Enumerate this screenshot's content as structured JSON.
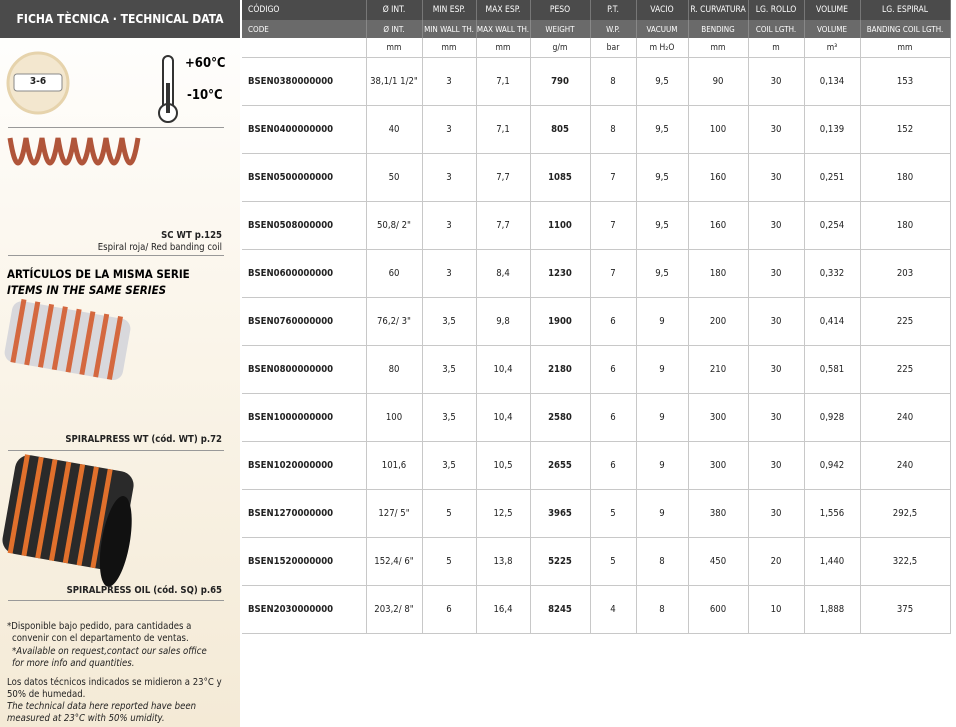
{
  "sidebar": {
    "title": "FICHA TÈCNICA · TECHNICAL DATA",
    "badge": "3-6",
    "temp_max": "+60°C",
    "temp_min": "-10°C",
    "coil_ref": "SC WT p.125",
    "coil_desc": "Espiral roja/ Red banding coil",
    "series_title": "ARTÍCULOS DE LA MISMA SERIE",
    "series_subtitle": "ITEMS IN THE SAME SERIES",
    "item1": "SPIRALPRESS WT (cód. WT) p.72",
    "item2": "SPIRALPRESS OIL (cód. SQ) p.65",
    "notes": [
      "*Disponible bajo pedido, para cantidades a",
      "convenir con el departamento de ventas.",
      "*Available on request,contact our sales office",
      "for more info and quantities.",
      "Los datos técnicos indicados se midieron a 23°C y",
      "50% de humedad.",
      "The technical data here reported have been",
      "measured at 23°C with 50% umidity."
    ]
  },
  "table": {
    "header_es": [
      "CÓDIGO",
      "Ø INT.",
      "MIN ESP.",
      "MAX ESP.",
      "PESO",
      "P.T.",
      "VACIO",
      "R. CURVATURA",
      "LG. ROLLO",
      "VOLUME",
      "LG. ESPIRAL"
    ],
    "header_en": [
      "CODE",
      "Ø INT.",
      "MIN WALL TH.",
      "MAX WALL TH.",
      "WEIGHT",
      "W.P.",
      "VACUUM",
      "BENDING",
      "COIL LGTH.",
      "VOLUME",
      "BANDING COIL LGTH."
    ],
    "units": [
      "mm",
      "mm",
      "mm",
      "g/m",
      "bar",
      "m H₂O",
      "mm",
      "m",
      "m³",
      "mm"
    ],
    "rows": [
      [
        "BSEN0380000000",
        "38,1/1 1/2\"",
        "3",
        "7,1",
        "790",
        "8",
        "9,5",
        "90",
        "30",
        "0,134",
        "153"
      ],
      [
        "BSEN0400000000",
        "40",
        "3",
        "7,1",
        "805",
        "8",
        "9,5",
        "100",
        "30",
        "0,139",
        "152"
      ],
      [
        "BSEN0500000000",
        "50",
        "3",
        "7,7",
        "1085",
        "7",
        "9,5",
        "160",
        "30",
        "0,251",
        "180"
      ],
      [
        "BSEN0508000000",
        "50,8/ 2\"",
        "3",
        "7,7",
        "1100",
        "7",
        "9,5",
        "160",
        "30",
        "0,254",
        "180"
      ],
      [
        "BSEN0600000000",
        "60",
        "3",
        "8,4",
        "1230",
        "7",
        "9,5",
        "180",
        "30",
        "0,332",
        "203"
      ],
      [
        "BSEN0760000000",
        "76,2/ 3\"",
        "3,5",
        "9,8",
        "1900",
        "6",
        "9",
        "200",
        "30",
        "0,414",
        "225"
      ],
      [
        "BSEN0800000000",
        "80",
        "3,5",
        "10,4",
        "2180",
        "6",
        "9",
        "210",
        "30",
        "0,581",
        "225"
      ],
      [
        "BSEN1000000000",
        "100",
        "3,5",
        "10,4",
        "2580",
        "6",
        "9",
        "300",
        "30",
        "0,928",
        "240"
      ],
      [
        "BSEN1020000000",
        "101,6",
        "3,5",
        "10,5",
        "2655",
        "6",
        "9",
        "300",
        "30",
        "0,942",
        "240"
      ],
      [
        "BSEN1270000000",
        "127/ 5\"",
        "5",
        "12,5",
        "3965",
        "5",
        "9",
        "380",
        "30",
        "1,556",
        "292,5"
      ],
      [
        "BSEN1520000000",
        "152,4/ 6\"",
        "5",
        "13,8",
        "5225",
        "5",
        "8",
        "450",
        "20",
        "1,440",
        "322,5"
      ],
      [
        "BSEN2030000000",
        "203,2/ 8\"",
        "6",
        "16,4",
        "8245",
        "4",
        "8",
        "600",
        "10",
        "1,888",
        "375"
      ]
    ]
  }
}
